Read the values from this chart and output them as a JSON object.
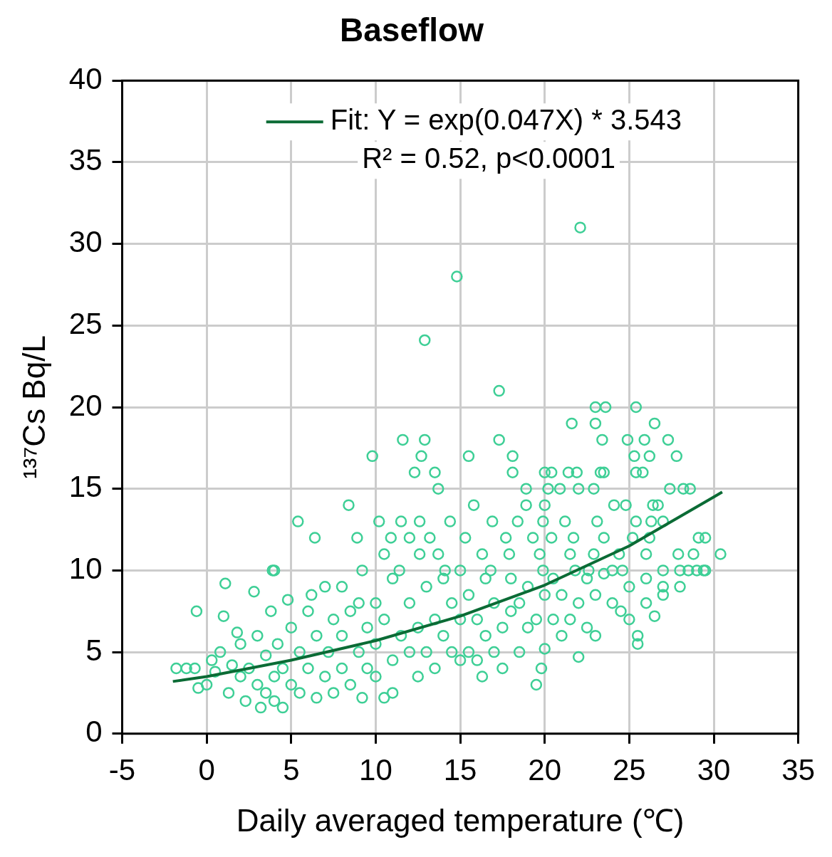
{
  "chart_data": {
    "type": "scatter",
    "title": "Baseflow",
    "xlabel": "Daily averaged temperature (℃)",
    "ylabel": "¹³⁷Cs Bq/L",
    "xlim": [
      -5,
      35
    ],
    "xticks": [
      -5,
      0,
      5,
      10,
      15,
      20,
      25,
      30,
      35
    ],
    "ylim": [
      0,
      40
    ],
    "yticks": [
      0,
      5,
      10,
      15,
      20,
      25,
      30,
      35,
      40
    ],
    "grid": true,
    "legend": "top",
    "marker": "circle",
    "annotations": [
      "R² = 0.52, p<0.0001"
    ],
    "series": [
      {
        "color": "#3ecf96",
        "x": [
          22.1,
          14.8,
          12.9,
          17.3,
          23,
          23.6,
          25.4,
          21.6,
          23,
          26.5,
          11.6,
          12.9,
          17.3,
          23.4,
          24.9,
          25.9,
          27.3,
          9.8,
          12.7,
          15.5,
          18.1,
          25.3,
          26.2,
          27.8,
          12.3,
          13.5,
          18.1,
          20,
          20.4,
          21.4,
          21.9,
          23.3,
          23.5,
          25.4,
          25.8,
          13.7,
          18.9,
          20.2,
          20.9,
          22,
          22.9,
          27.4,
          28.2,
          28.6,
          8.4,
          15.8,
          18.9,
          20,
          24.1,
          24.8,
          26.4,
          26.7,
          5.4,
          10.2,
          11.5,
          12.6,
          14.4,
          16.9,
          18.4,
          19.9,
          21.2,
          23.1,
          25.4,
          26.3,
          27,
          6.4,
          8.9,
          10.9,
          12,
          13.2,
          15.3,
          17.7,
          19.3,
          20.4,
          21.7,
          23.5,
          25.2,
          26.2,
          29.1,
          29.5,
          10.5,
          12.6,
          13.7,
          16.3,
          17.9,
          19.7,
          21.5,
          22.9,
          24.4,
          26,
          27.9,
          28.8,
          30.4,
          3.9,
          9.2,
          11.4,
          14.1,
          16.8,
          19.9,
          22.6,
          24.6,
          27,
          29.4,
          -1.8,
          -1.2,
          -0.7,
          -0.5,
          -0.6,
          0,
          0.3,
          0.5,
          0.8,
          1,
          1.1,
          1.3,
          1.5,
          1.8,
          2,
          2,
          2.3,
          2.5,
          2.8,
          3,
          3,
          3.2,
          3.5,
          3.5,
          3.8,
          4,
          4,
          4,
          4.2,
          4.5,
          4.5,
          4.8,
          5,
          5,
          5.5,
          5.5,
          6,
          6,
          6.2,
          6.5,
          6.5,
          7,
          7,
          7.2,
          7.5,
          7.5,
          8,
          8,
          8,
          8.5,
          8.5,
          9,
          9,
          9.2,
          9.5,
          9.5,
          10,
          10,
          10,
          10.5,
          10.5,
          11,
          11,
          11,
          11.5,
          12,
          12,
          12.5,
          12.5,
          13,
          13,
          13.5,
          13.5,
          14,
          14,
          14.5,
          14.5,
          15,
          15,
          15,
          15.5,
          15.5,
          16,
          16,
          16.3,
          16.5,
          16.5,
          17,
          17,
          17.5,
          17.5,
          18,
          18,
          18.5,
          18.5,
          19,
          19,
          19.5,
          19.5,
          19.8,
          20,
          20,
          20.5,
          20.5,
          21,
          21,
          21.5,
          21.8,
          22,
          22,
          22.5,
          22.5,
          23,
          23,
          23.5,
          24,
          24,
          24.5,
          25,
          25,
          25.5,
          25.5,
          26,
          26,
          26.5,
          27,
          27,
          28,
          28,
          28.5,
          29,
          29.5
        ],
        "values": [
          31,
          28,
          24.1,
          21,
          20,
          20,
          20,
          19,
          19,
          19,
          18,
          18,
          18,
          18,
          18,
          18,
          18,
          17,
          17,
          17,
          17,
          17,
          17,
          17,
          16,
          16,
          16,
          16,
          16,
          16,
          16,
          16,
          16,
          16,
          16,
          15,
          15,
          15,
          15,
          15,
          15,
          15,
          15,
          15,
          14,
          14,
          14,
          14,
          14,
          14,
          14,
          14,
          13,
          13,
          13,
          13,
          13,
          13,
          13,
          13,
          13,
          13,
          13,
          13,
          13,
          12,
          12,
          12,
          12,
          12,
          12,
          12,
          12,
          12,
          12,
          12,
          12,
          12,
          12,
          12,
          11,
          11,
          11,
          11,
          11,
          11,
          11,
          11,
          11,
          11,
          11,
          11,
          11,
          10,
          10,
          10,
          10,
          10,
          10,
          10,
          10,
          10,
          10,
          4,
          4,
          4,
          2.8,
          7.5,
          3,
          4.5,
          3.8,
          5,
          7.2,
          9.2,
          2.5,
          4.2,
          6.2,
          3.5,
          5.5,
          2,
          4,
          8.7,
          3,
          6,
          1.6,
          2.5,
          4.8,
          7.5,
          2,
          3.5,
          10,
          5.5,
          1.6,
          4,
          8.2,
          3,
          6.5,
          2.5,
          5,
          4,
          7.5,
          8.5,
          2.2,
          6,
          3.5,
          9,
          5,
          2.5,
          7,
          4,
          6,
          9,
          3,
          7.5,
          5,
          8,
          2.2,
          4,
          6.5,
          3.5,
          5.5,
          8,
          2.2,
          7,
          2.5,
          4.5,
          9.5,
          6,
          5,
          8,
          3.5,
          6.5,
          5,
          9,
          4,
          7,
          6,
          9.5,
          5,
          8,
          4.5,
          7,
          10,
          5,
          8.5,
          4.5,
          7,
          3.5,
          6,
          9.5,
          5,
          8,
          4,
          6.5,
          7.5,
          9.5,
          5,
          8,
          6.5,
          9,
          3,
          7,
          4,
          5.2,
          8.5,
          7,
          9.5,
          6,
          8.5,
          7,
          10,
          4.7,
          8,
          6.5,
          9.5,
          6,
          8.5,
          9.8,
          8,
          10,
          7.5,
          7,
          9,
          6,
          5.5,
          8,
          9.5,
          7.2,
          9,
          8.5,
          9,
          10,
          10,
          10,
          10
        ]
      },
      {
        "type": "line",
        "name": "Fit: Y = exp(0.047X) * 3.543",
        "color": "#0b6b35",
        "marker": "none",
        "line_style": "solid",
        "x": [
          -2,
          0,
          5,
          10,
          15,
          20,
          25,
          30,
          30.5
        ],
        "values": [
          3.2,
          3.5,
          4.5,
          5.7,
          7.2,
          9.1,
          11.5,
          14.5,
          14.8
        ]
      }
    ]
  }
}
